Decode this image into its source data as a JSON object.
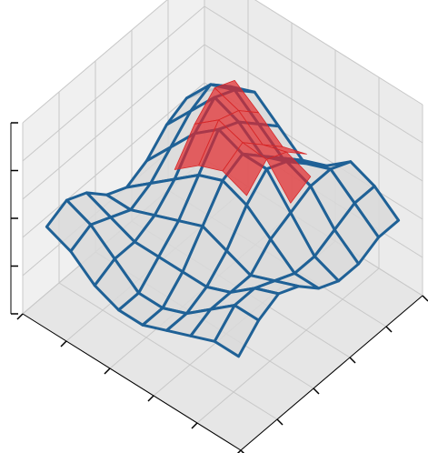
{
  "chart_data": {
    "type": "surface",
    "grid": true,
    "surfaces": [
      {
        "color": "#1f6196",
        "fill": "#d9d9d9",
        "z": [
          [
            0.45,
            0.55,
            0.6,
            0.5,
            0.4,
            0.45,
            0.55,
            0.5,
            0.4
          ],
          [
            0.5,
            0.65,
            0.7,
            0.6,
            0.5,
            0.55,
            0.6,
            0.5,
            0.4
          ],
          [
            0.45,
            0.6,
            0.75,
            0.7,
            0.6,
            0.65,
            0.6,
            0.45,
            0.35
          ],
          [
            0.35,
            0.5,
            0.65,
            0.75,
            0.7,
            0.7,
            0.55,
            0.4,
            0.35
          ],
          [
            0.3,
            0.4,
            0.5,
            0.6,
            0.65,
            0.6,
            0.5,
            0.4,
            0.4
          ],
          [
            0.35,
            0.35,
            0.4,
            0.45,
            0.5,
            0.45,
            0.4,
            0.45,
            0.5
          ],
          [
            0.45,
            0.4,
            0.35,
            0.35,
            0.35,
            0.35,
            0.4,
            0.5,
            0.55
          ],
          [
            0.5,
            0.45,
            0.35,
            0.25,
            0.25,
            0.3,
            0.4,
            0.5,
            0.5
          ],
          [
            0.45,
            0.4,
            0.3,
            0.25,
            0.25,
            0.3,
            0.35,
            0.4,
            0.4
          ]
        ]
      },
      {
        "color": "#d62728",
        "fill": "#e3262a",
        "z": [
          [
            null,
            null,
            null,
            null,
            null,
            null,
            null,
            null,
            null
          ],
          [
            null,
            null,
            0.75,
            0.66,
            0.56,
            0.6,
            null,
            null,
            null
          ],
          [
            null,
            null,
            0.8,
            0.76,
            0.66,
            0.7,
            0.65,
            null,
            null
          ],
          [
            null,
            null,
            0.7,
            0.8,
            0.76,
            0.75,
            0.6,
            null,
            null
          ],
          [
            null,
            null,
            0.55,
            0.65,
            0.7,
            0.65,
            null,
            null,
            null
          ],
          [
            null,
            null,
            null,
            null,
            null,
            null,
            null,
            null,
            null
          ],
          [
            null,
            null,
            null,
            null,
            null,
            null,
            null,
            null,
            null
          ],
          [
            null,
            null,
            null,
            null,
            null,
            null,
            null,
            null,
            null
          ],
          [
            null,
            null,
            null,
            null,
            null,
            null,
            null,
            null,
            null
          ]
        ]
      }
    ]
  }
}
